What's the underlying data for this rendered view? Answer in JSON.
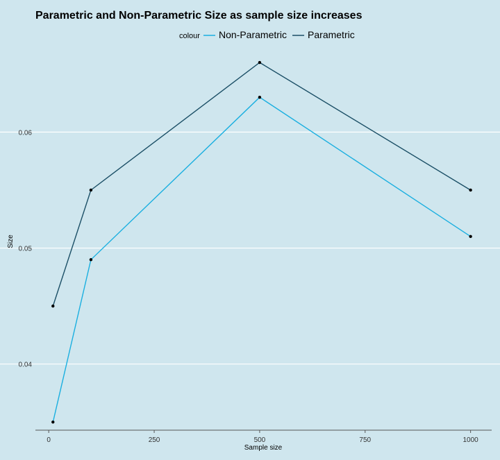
{
  "chart_data": {
    "type": "line",
    "title": "Parametric and Non-Parametric Size as sample size increases",
    "xlabel": "Sample size",
    "ylabel": "Size",
    "legend_title": "colour",
    "legend_position": "top",
    "x": [
      10,
      100,
      500,
      1000
    ],
    "xlim": [
      -25,
      1050
    ],
    "ylim": [
      0.0343,
      0.0672
    ],
    "xticks": [
      0,
      250,
      500,
      750,
      1000
    ],
    "xtick_labels": [
      "0",
      "250",
      "500",
      "750",
      "1000"
    ],
    "yticks": [
      0.04,
      0.05,
      0.06
    ],
    "ytick_labels": [
      "0.04",
      "0.05",
      "0.06"
    ],
    "grid": "horizontal-major",
    "series": [
      {
        "name": "Non-Parametric",
        "color": "#1aafe0",
        "values": [
          0.035,
          0.049,
          0.063,
          0.051
        ]
      },
      {
        "name": "Parametric",
        "color": "#1b4f66",
        "values": [
          0.045,
          0.055,
          0.066,
          0.055
        ]
      }
    ]
  }
}
